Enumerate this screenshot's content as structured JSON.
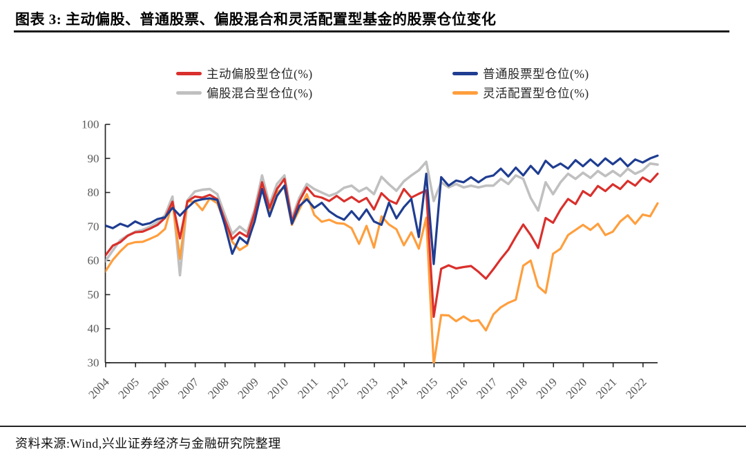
{
  "header": {
    "title": "图表 3: 主动偏股、普通股票、偏股混合和灵活配置型基金的股票仓位变化"
  },
  "footer": {
    "source": "资料来源:Wind,兴业证券经济与金融研究院整理"
  },
  "axis_colors": {
    "axis_line": "#262626",
    "tick_label": "#595959"
  },
  "chart_data": {
    "type": "line",
    "title": "",
    "xlabel": "",
    "ylabel": "",
    "x_unit": "quarter",
    "x_start": "2004Q1",
    "x_end": "2022Q3",
    "x_tick_labels": [
      "2004",
      "2005",
      "2006",
      "2007",
      "2008",
      "2009",
      "2010",
      "2011",
      "2012",
      "2013",
      "2014",
      "2015",
      "2016",
      "2017",
      "2018",
      "2019",
      "2020",
      "2021",
      "2022"
    ],
    "ylim": [
      30,
      100
    ],
    "y_ticks": [
      30,
      40,
      50,
      60,
      70,
      80,
      90,
      100
    ],
    "grid": false,
    "legend_position": "top",
    "series": [
      {
        "name": "主动偏股型仓位(%)",
        "color": "#D9302C",
        "values": [
          61.5,
          64.4,
          65.4,
          67.3,
          68.3,
          68.5,
          69.4,
          70.5,
          72.5,
          77.3,
          66.5,
          77.4,
          78.8,
          78.5,
          79.3,
          78.0,
          72.0,
          66.3,
          68.3,
          67.0,
          74.0,
          83.0,
          75.5,
          81.0,
          84.0,
          71.5,
          77.5,
          81.5,
          79.0,
          78.5,
          77.5,
          79.0,
          77.4,
          78.7,
          77.2,
          78.4,
          75.0,
          79.8,
          77.7,
          76.7,
          81.0,
          78.5,
          79.6,
          80.6,
          43.5,
          57.6,
          58.6,
          57.7,
          58.1,
          58.4,
          56.7,
          54.7,
          57.5,
          60.5,
          63.2,
          67.0,
          70.6,
          67.5,
          63.7,
          72.5,
          71.1,
          75.0,
          78.1,
          76.6,
          80.4,
          79.0,
          81.9,
          80.4,
          82.4,
          81.0,
          83.4,
          82.0,
          84.4,
          83.1,
          85.5
        ]
      },
      {
        "name": "普通股票型仓位(%)",
        "color": "#1F3D91",
        "values": [
          70.3,
          69.5,
          70.8,
          70.0,
          71.5,
          70.5,
          71.0,
          72.2,
          72.7,
          75.5,
          73.2,
          75.5,
          77.5,
          78.0,
          78.3,
          77.8,
          70.5,
          62.0,
          66.8,
          65.0,
          71.5,
          81.0,
          73.0,
          79.0,
          82.0,
          70.8,
          76.0,
          78.0,
          75.5,
          77.0,
          74.5,
          73.0,
          72.0,
          74.5,
          72.0,
          75.0,
          71.5,
          70.5,
          77.0,
          72.4,
          75.7,
          78.1,
          66.9,
          85.5,
          59.0,
          84.5,
          82.0,
          83.5,
          83.0,
          84.5,
          83.0,
          84.5,
          85.0,
          87.0,
          84.7,
          87.3,
          85.0,
          87.8,
          85.5,
          89.3,
          87.3,
          88.5,
          87.0,
          89.5,
          87.7,
          89.7,
          87.8,
          90.0,
          88.3,
          90.0,
          87.7,
          89.7,
          88.8,
          90.0,
          90.8
        ]
      },
      {
        "name": "偏股混合型仓位(%)",
        "color": "#C0C0C0",
        "values": [
          59.8,
          63.0,
          66.0,
          67.4,
          68.5,
          69.0,
          70.0,
          71.3,
          73.3,
          78.8,
          55.7,
          77.7,
          80.3,
          80.8,
          81.0,
          79.5,
          73.5,
          67.8,
          70.0,
          68.3,
          75.0,
          85.0,
          76.5,
          82.5,
          85.0,
          72.5,
          78.5,
          82.5,
          81.0,
          80.0,
          79.0,
          79.8,
          81.4,
          82.0,
          80.3,
          81.4,
          79.5,
          84.6,
          82.4,
          80.5,
          83.3,
          85.0,
          86.5,
          89.0,
          77.5,
          83.0,
          81.5,
          82.5,
          81.5,
          82.0,
          81.5,
          82.0,
          82.0,
          84.0,
          82.5,
          85.0,
          84.0,
          78.4,
          74.7,
          83.0,
          79.5,
          83.0,
          85.5,
          84.0,
          85.8,
          84.3,
          86.3,
          84.8,
          86.3,
          84.8,
          87.0,
          85.5,
          86.5,
          88.5,
          88.2
        ]
      },
      {
        "name": "灵活配置型仓位(%)",
        "color": "#FF9E3D",
        "values": [
          56.8,
          60.2,
          62.7,
          64.8,
          65.4,
          65.5,
          66.4,
          67.4,
          69.3,
          77.2,
          60.5,
          77.4,
          77.3,
          74.8,
          78.3,
          76.8,
          71.0,
          65.5,
          63.1,
          64.5,
          72.0,
          82.0,
          74.0,
          80.0,
          81.5,
          70.5,
          75.0,
          79.5,
          73.4,
          71.4,
          72.0,
          71.0,
          70.8,
          69.5,
          64.9,
          70.2,
          63.8,
          73.0,
          70.6,
          69.2,
          64.5,
          68.3,
          63.5,
          72.6,
          29.5,
          44.0,
          43.9,
          42.2,
          43.6,
          42.2,
          42.5,
          39.5,
          44.2,
          46.3,
          47.6,
          48.5,
          58.5,
          60.0,
          52.4,
          50.5,
          62.0,
          63.5,
          67.5,
          69.0,
          70.5,
          69.0,
          70.8,
          67.5,
          68.5,
          71.5,
          73.3,
          70.8,
          73.5,
          73.0,
          76.8
        ]
      }
    ]
  }
}
